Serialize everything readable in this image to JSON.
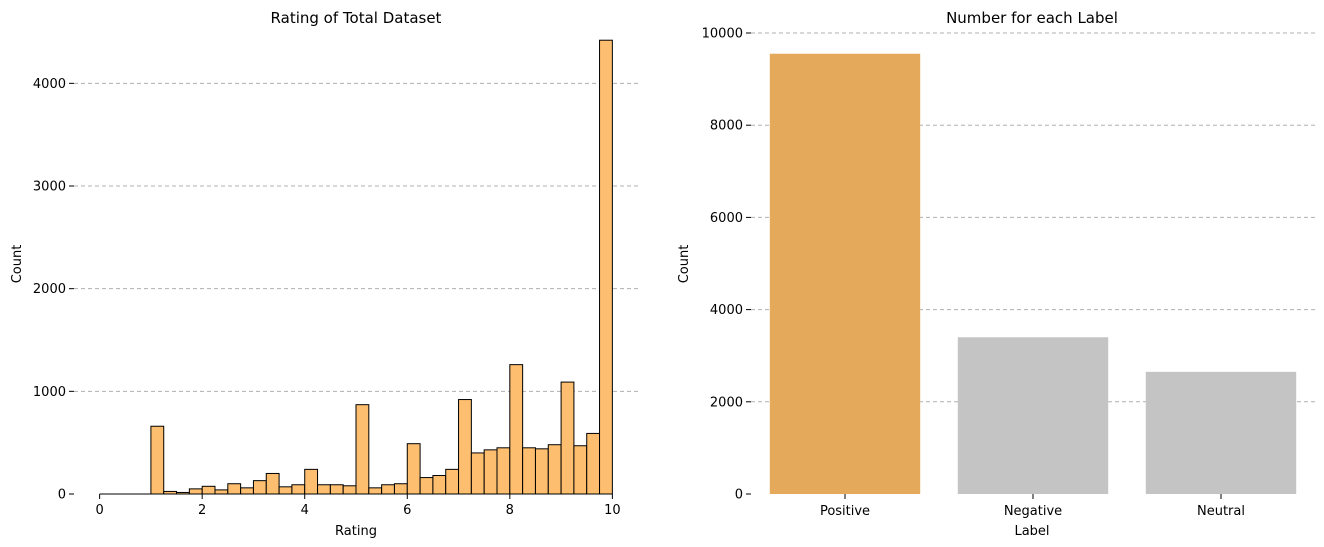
{
  "chart_data": [
    {
      "type": "bar",
      "subtype": "histogram",
      "title": "Rating of Total Dataset",
      "xlabel": "Rating",
      "ylabel": "Count",
      "xlim": [
        -0.5,
        10.5
      ],
      "ylim": [
        0,
        4500
      ],
      "xticks": [
        0,
        2,
        4,
        6,
        8,
        10
      ],
      "yticks": [
        0,
        1000,
        2000,
        3000,
        4000
      ],
      "grid": "y",
      "bar_color": "#FDBF6F",
      "edge_color": "#000000",
      "bins": [
        {
          "x0": 1.0,
          "x1": 1.25,
          "count": 660
        },
        {
          "x0": 1.25,
          "x1": 1.5,
          "count": 25
        },
        {
          "x0": 1.5,
          "x1": 1.75,
          "count": 15
        },
        {
          "x0": 1.75,
          "x1": 2.0,
          "count": 50
        },
        {
          "x0": 2.0,
          "x1": 2.25,
          "count": 75
        },
        {
          "x0": 2.25,
          "x1": 2.5,
          "count": 40
        },
        {
          "x0": 2.5,
          "x1": 2.75,
          "count": 100
        },
        {
          "x0": 2.75,
          "x1": 3.0,
          "count": 60
        },
        {
          "x0": 3.0,
          "x1": 3.25,
          "count": 130
        },
        {
          "x0": 3.25,
          "x1": 3.5,
          "count": 200
        },
        {
          "x0": 3.5,
          "x1": 3.75,
          "count": 70
        },
        {
          "x0": 3.75,
          "x1": 4.0,
          "count": 90
        },
        {
          "x0": 4.0,
          "x1": 4.25,
          "count": 240
        },
        {
          "x0": 4.25,
          "x1": 4.5,
          "count": 90
        },
        {
          "x0": 4.5,
          "x1": 4.75,
          "count": 90
        },
        {
          "x0": 4.75,
          "x1": 5.0,
          "count": 80
        },
        {
          "x0": 5.0,
          "x1": 5.25,
          "count": 870
        },
        {
          "x0": 5.25,
          "x1": 5.5,
          "count": 60
        },
        {
          "x0": 5.5,
          "x1": 5.75,
          "count": 90
        },
        {
          "x0": 5.75,
          "x1": 6.0,
          "count": 100
        },
        {
          "x0": 6.0,
          "x1": 6.25,
          "count": 490
        },
        {
          "x0": 6.25,
          "x1": 6.5,
          "count": 160
        },
        {
          "x0": 6.5,
          "x1": 6.75,
          "count": 180
        },
        {
          "x0": 6.75,
          "x1": 7.0,
          "count": 240
        },
        {
          "x0": 7.0,
          "x1": 7.25,
          "count": 920
        },
        {
          "x0": 7.25,
          "x1": 7.5,
          "count": 400
        },
        {
          "x0": 7.5,
          "x1": 7.75,
          "count": 430
        },
        {
          "x0": 7.75,
          "x1": 8.0,
          "count": 450
        },
        {
          "x0": 8.0,
          "x1": 8.25,
          "count": 1260
        },
        {
          "x0": 8.25,
          "x1": 8.5,
          "count": 450
        },
        {
          "x0": 8.5,
          "x1": 8.75,
          "count": 440
        },
        {
          "x0": 8.75,
          "x1": 9.0,
          "count": 480
        },
        {
          "x0": 9.0,
          "x1": 9.25,
          "count": 1090
        },
        {
          "x0": 9.25,
          "x1": 9.5,
          "count": 470
        },
        {
          "x0": 9.5,
          "x1": 9.75,
          "count": 590
        },
        {
          "x0": 9.75,
          "x1": 10.0,
          "count": 4420
        }
      ]
    },
    {
      "type": "bar",
      "title": "Number for each Label",
      "xlabel": "Label",
      "ylabel": "Count",
      "ylim": [
        0,
        10000
      ],
      "yticks": [
        0,
        2000,
        4000,
        6000,
        8000,
        10000
      ],
      "grid": "y",
      "categories": [
        "Positive",
        "Negative",
        "Neutral"
      ],
      "values": [
        9550,
        3400,
        2650
      ],
      "colors": [
        "#E5A95C",
        "#C4C4C4",
        "#C4C4C4"
      ]
    }
  ]
}
